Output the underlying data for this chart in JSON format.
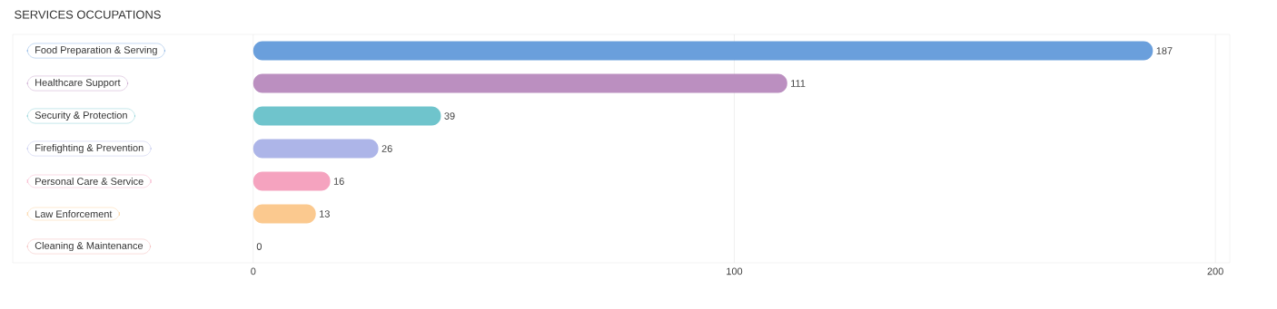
{
  "chart_data": {
    "type": "bar",
    "orientation": "horizontal",
    "title": "SERVICES OCCUPATIONS",
    "categories": [
      "Food Preparation & Serving",
      "Healthcare Support",
      "Security & Protection",
      "Firefighting & Prevention",
      "Personal Care & Service",
      "Law Enforcement",
      "Cleaning & Maintenance"
    ],
    "values": [
      187,
      111,
      39,
      26,
      16,
      13,
      0
    ],
    "colors": [
      "#6a9fdc",
      "#bb8fc0",
      "#6fc4cc",
      "#adb5e8",
      "#f5a3bf",
      "#fbc98f",
      "#f0aaa6"
    ],
    "xlim": [
      -50,
      203
    ],
    "xticks": [
      0,
      100,
      200
    ],
    "grid": "x",
    "data_labels": true
  }
}
